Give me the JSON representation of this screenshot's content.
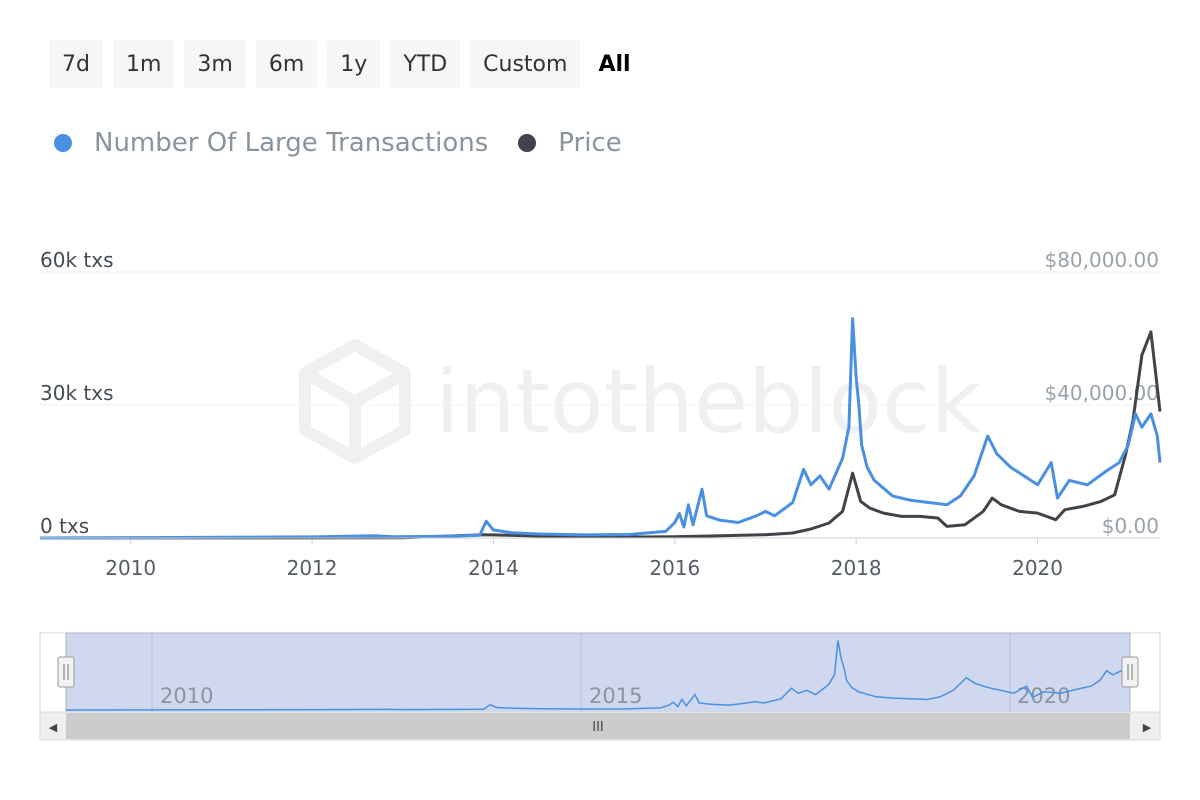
{
  "range_selector": {
    "buttons": [
      "7d",
      "1m",
      "3m",
      "6m",
      "1y",
      "YTD",
      "Custom",
      "All"
    ],
    "active": "All"
  },
  "legend": [
    {
      "label": "Number Of Large Transactions",
      "color": "#4a90e2"
    },
    {
      "label": "Price",
      "color": "#40444a"
    }
  ],
  "watermark": "intotheblock",
  "navigator": {
    "labels": [
      "2010",
      "2015",
      "2020"
    ],
    "scroll_grip": "III",
    "left_arrow": "◀",
    "right_arrow": "▶"
  },
  "chart_data": {
    "type": "line",
    "title": "",
    "xlabel": "",
    "x_range": [
      2009.0,
      2021.35
    ],
    "x_ticks": [
      "2010",
      "2012",
      "2014",
      "2016",
      "2018",
      "2020"
    ],
    "y_left": {
      "range": [
        0,
        60000
      ],
      "ticks": [
        0,
        30000,
        60000
      ],
      "tick_labels": [
        "0 txs",
        "30k txs",
        "60k txs"
      ]
    },
    "y_right": {
      "range": [
        0,
        80000
      ],
      "ticks": [
        0,
        40000,
        80000
      ],
      "tick_labels": [
        "$0.00",
        "$40,000.00",
        "$80,000.00"
      ]
    },
    "grid": true,
    "legend_position": "top-left",
    "series": [
      {
        "name": "Number Of Large Transactions",
        "axis": "left",
        "color": "#4a90e2",
        "points": [
          [
            2009.0,
            0
          ],
          [
            2010.0,
            50
          ],
          [
            2011.0,
            150
          ],
          [
            2012.0,
            250
          ],
          [
            2012.7,
            500
          ],
          [
            2012.9,
            300
          ],
          [
            2013.5,
            400
          ],
          [
            2013.85,
            600
          ],
          [
            2013.92,
            3800
          ],
          [
            2014.0,
            1800
          ],
          [
            2014.2,
            1200
          ],
          [
            2014.5,
            900
          ],
          [
            2015.0,
            700
          ],
          [
            2015.5,
            800
          ],
          [
            2015.9,
            1500
          ],
          [
            2016.0,
            3500
          ],
          [
            2016.05,
            5500
          ],
          [
            2016.1,
            2500
          ],
          [
            2016.15,
            7500
          ],
          [
            2016.2,
            3000
          ],
          [
            2016.3,
            11000
          ],
          [
            2016.35,
            5000
          ],
          [
            2016.5,
            4000
          ],
          [
            2016.7,
            3500
          ],
          [
            2016.9,
            5000
          ],
          [
            2017.0,
            6000
          ],
          [
            2017.1,
            5000
          ],
          [
            2017.3,
            8000
          ],
          [
            2017.42,
            15500
          ],
          [
            2017.5,
            12000
          ],
          [
            2017.6,
            14000
          ],
          [
            2017.7,
            11000
          ],
          [
            2017.85,
            18000
          ],
          [
            2017.92,
            25000
          ],
          [
            2017.96,
            49500
          ],
          [
            2018.0,
            36000
          ],
          [
            2018.03,
            30000
          ],
          [
            2018.06,
            21000
          ],
          [
            2018.12,
            16000
          ],
          [
            2018.2,
            13000
          ],
          [
            2018.4,
            9500
          ],
          [
            2018.6,
            8500
          ],
          [
            2018.8,
            8000
          ],
          [
            2019.0,
            7500
          ],
          [
            2019.15,
            9500
          ],
          [
            2019.3,
            14000
          ],
          [
            2019.45,
            23000
          ],
          [
            2019.55,
            19000
          ],
          [
            2019.7,
            16000
          ],
          [
            2019.85,
            14000
          ],
          [
            2020.0,
            12000
          ],
          [
            2020.15,
            17000
          ],
          [
            2020.22,
            9000
          ],
          [
            2020.35,
            13000
          ],
          [
            2020.55,
            12000
          ],
          [
            2020.75,
            15000
          ],
          [
            2020.9,
            17000
          ],
          [
            2021.0,
            21000
          ],
          [
            2021.08,
            28000
          ],
          [
            2021.15,
            25000
          ],
          [
            2021.25,
            28000
          ],
          [
            2021.32,
            23000
          ],
          [
            2021.35,
            17000
          ]
        ]
      },
      {
        "name": "Price",
        "axis": "right",
        "color": "#40444a",
        "points": [
          [
            2009.0,
            0
          ],
          [
            2013.0,
            100
          ],
          [
            2013.9,
            1000
          ],
          [
            2014.5,
            600
          ],
          [
            2015.5,
            300
          ],
          [
            2016.0,
            400
          ],
          [
            2016.5,
            650
          ],
          [
            2017.0,
            1000
          ],
          [
            2017.3,
            1500
          ],
          [
            2017.5,
            2700
          ],
          [
            2017.7,
            4500
          ],
          [
            2017.85,
            8000
          ],
          [
            2017.96,
            19500
          ],
          [
            2018.05,
            11000
          ],
          [
            2018.15,
            9000
          ],
          [
            2018.3,
            7500
          ],
          [
            2018.5,
            6500
          ],
          [
            2018.7,
            6500
          ],
          [
            2018.9,
            6000
          ],
          [
            2019.0,
            3500
          ],
          [
            2019.2,
            4000
          ],
          [
            2019.4,
            8000
          ],
          [
            2019.5,
            12000
          ],
          [
            2019.6,
            10000
          ],
          [
            2019.8,
            8000
          ],
          [
            2020.0,
            7500
          ],
          [
            2020.2,
            5500
          ],
          [
            2020.3,
            8500
          ],
          [
            2020.5,
            9500
          ],
          [
            2020.7,
            11000
          ],
          [
            2020.85,
            13000
          ],
          [
            2020.97,
            25000
          ],
          [
            2021.05,
            35000
          ],
          [
            2021.15,
            55000
          ],
          [
            2021.25,
            62000
          ],
          [
            2021.3,
            50000
          ],
          [
            2021.35,
            38000
          ]
        ]
      }
    ]
  }
}
